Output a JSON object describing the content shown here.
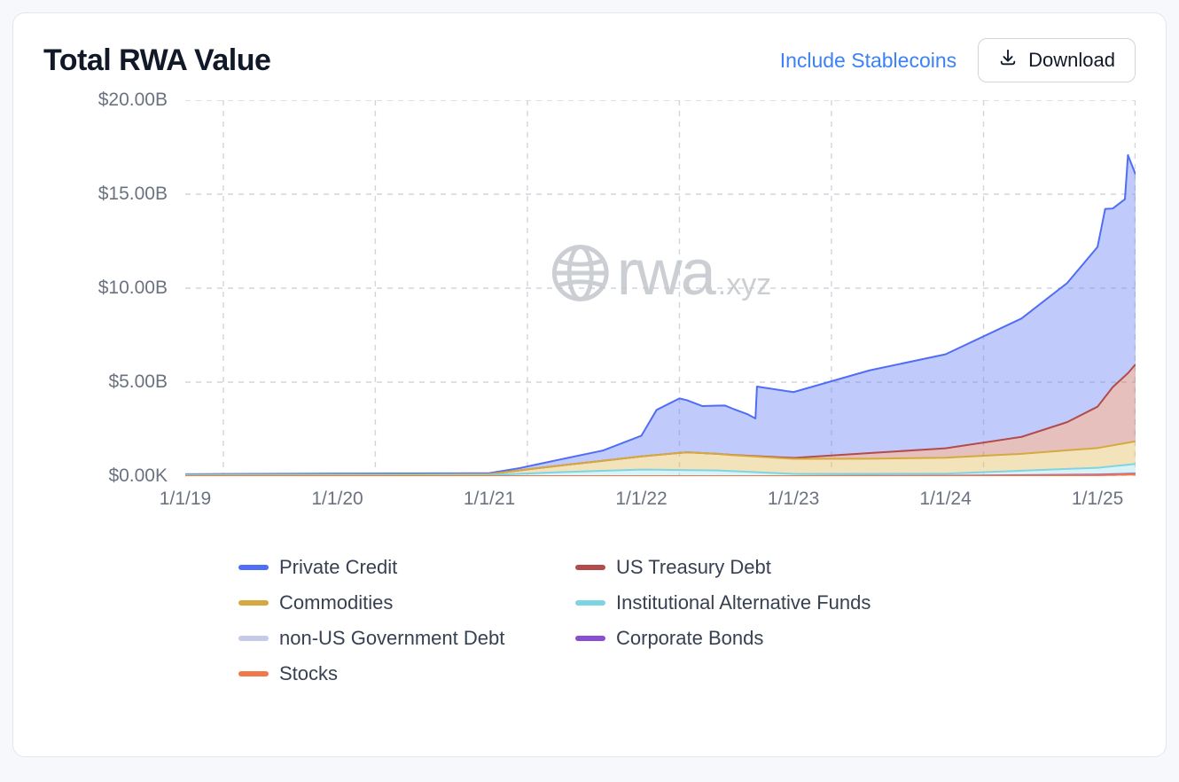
{
  "card": {
    "title": "Total RWA Value",
    "include_stablecoins_label": "Include Stablecoins",
    "download_label": "Download",
    "background_color": "#ffffff",
    "border_color": "#e2e6ee"
  },
  "watermark": {
    "main": "rwa",
    "suffix": ".xyz",
    "color": "#c2c6cc"
  },
  "chart": {
    "type": "stacked-area",
    "ylim": [
      0,
      20
    ],
    "y_unit": "B USD",
    "y_ticks": [
      {
        "value": 0,
        "label": "$0.00K"
      },
      {
        "value": 5,
        "label": "$5.00B"
      },
      {
        "value": 10,
        "label": "$10.00B"
      },
      {
        "value": 15,
        "label": "$15.00B"
      },
      {
        "value": 20,
        "label": "$20.00B"
      }
    ],
    "xlim": [
      2019.0,
      2025.25
    ],
    "x_ticks": [
      {
        "value": 2019,
        "label": "1/1/19"
      },
      {
        "value": 2020,
        "label": "1/1/20"
      },
      {
        "value": 2021,
        "label": "1/1/21"
      },
      {
        "value": 2022,
        "label": "1/1/22"
      },
      {
        "value": 2023,
        "label": "1/1/23"
      },
      {
        "value": 2024,
        "label": "1/1/24"
      },
      {
        "value": 2025,
        "label": "1/1/25"
      }
    ],
    "x_vgrid": [
      2019.25,
      2020.25,
      2021.25,
      2022.25,
      2023.25,
      2024.25
    ],
    "grid_color": "#d1d5db",
    "grid_dash": "6 6",
    "axis_label_color": "#6b7280",
    "axis_label_fontsize": 21,
    "line_width": 2,
    "fill_opacity": 0.42,
    "series_order_top_to_bottom": [
      "private_credit",
      "us_treasury_debt",
      "commodities",
      "institutional_alt_funds",
      "non_us_gov_debt",
      "corporate_bonds",
      "stocks"
    ],
    "series": {
      "private_credit": {
        "label": "Private Credit",
        "stroke": "#4f6df5",
        "fill": "#6b83f5",
        "x": [
          2019.0,
          2020.0,
          2020.5,
          2021.0,
          2021.2,
          2021.5,
          2021.75,
          2022.0,
          2022.1,
          2022.25,
          2022.4,
          2022.55,
          2022.7,
          2022.75,
          2022.76,
          2023.0,
          2023.5,
          2024.0,
          2024.5,
          2024.8,
          2025.0,
          2025.05,
          2025.1,
          2025.18,
          2025.2,
          2025.25
        ],
        "y": [
          0.03,
          0.05,
          0.05,
          0.05,
          0.12,
          0.35,
          0.55,
          1.1,
          2.4,
          2.9,
          2.5,
          2.6,
          2.2,
          2.0,
          3.7,
          3.5,
          4.4,
          5.0,
          6.3,
          7.4,
          8.5,
          10.0,
          9.5,
          9.4,
          11.6,
          10.1
        ]
      },
      "us_treasury_debt": {
        "label": "US Treasury Debt",
        "stroke": "#b24b4b",
        "fill": "#c46a62",
        "x": [
          2019.0,
          2022.5,
          2023.0,
          2023.5,
          2024.0,
          2024.5,
          2024.8,
          2025.0,
          2025.1,
          2025.2,
          2025.25
        ],
        "y": [
          0.0,
          0.0,
          0.05,
          0.3,
          0.5,
          0.9,
          1.5,
          2.2,
          3.1,
          3.7,
          4.1
        ]
      },
      "commodities": {
        "label": "Commodities",
        "stroke": "#d6a93e",
        "fill": "#e3bc5d",
        "x": [
          2019.0,
          2020.5,
          2021.0,
          2021.3,
          2021.7,
          2022.0,
          2022.3,
          2022.6,
          2023.0,
          2023.5,
          2024.0,
          2024.5,
          2025.0,
          2025.25
        ],
        "y": [
          0.02,
          0.03,
          0.05,
          0.25,
          0.5,
          0.7,
          0.95,
          0.85,
          0.8,
          0.8,
          0.85,
          0.9,
          1.05,
          1.2
        ]
      },
      "institutional_alt_funds": {
        "label": "Institutional Alternative Funds",
        "stroke": "#7fd4e3",
        "fill": "#a6e2ec",
        "x": [
          2019.0,
          2020.0,
          2021.0,
          2021.5,
          2022.0,
          2022.5,
          2023.0,
          2024.0,
          2025.0,
          2025.25
        ],
        "y": [
          0.05,
          0.06,
          0.06,
          0.22,
          0.35,
          0.3,
          0.12,
          0.1,
          0.35,
          0.5
        ]
      },
      "non_us_gov_debt": {
        "label": "non-US Government Debt",
        "stroke": "#c4cae8",
        "fill": "#d4d8ef",
        "x": [
          2019.0,
          2023.0,
          2024.0,
          2025.25
        ],
        "y": [
          0.0,
          0.0,
          0.01,
          0.02
        ]
      },
      "corporate_bonds": {
        "label": "Corporate Bonds",
        "stroke": "#8a4fd1",
        "fill": "#a97be0",
        "x": [
          2019.0,
          2023.0,
          2024.0,
          2025.25
        ],
        "y": [
          0.0,
          0.0,
          0.01,
          0.03
        ]
      },
      "stocks": {
        "label": "Stocks",
        "stroke": "#f0784b",
        "fill": "#f59b76",
        "x": [
          2019.0,
          2023.0,
          2024.0,
          2025.0,
          2025.25
        ],
        "y": [
          0.0,
          0.0,
          0.01,
          0.05,
          0.1
        ]
      }
    },
    "legend_layout": [
      [
        "private_credit",
        "us_treasury_debt"
      ],
      [
        "commodities",
        "institutional_alt_funds"
      ],
      [
        "non_us_gov_debt",
        "corporate_bonds"
      ],
      [
        "stocks"
      ]
    ]
  }
}
